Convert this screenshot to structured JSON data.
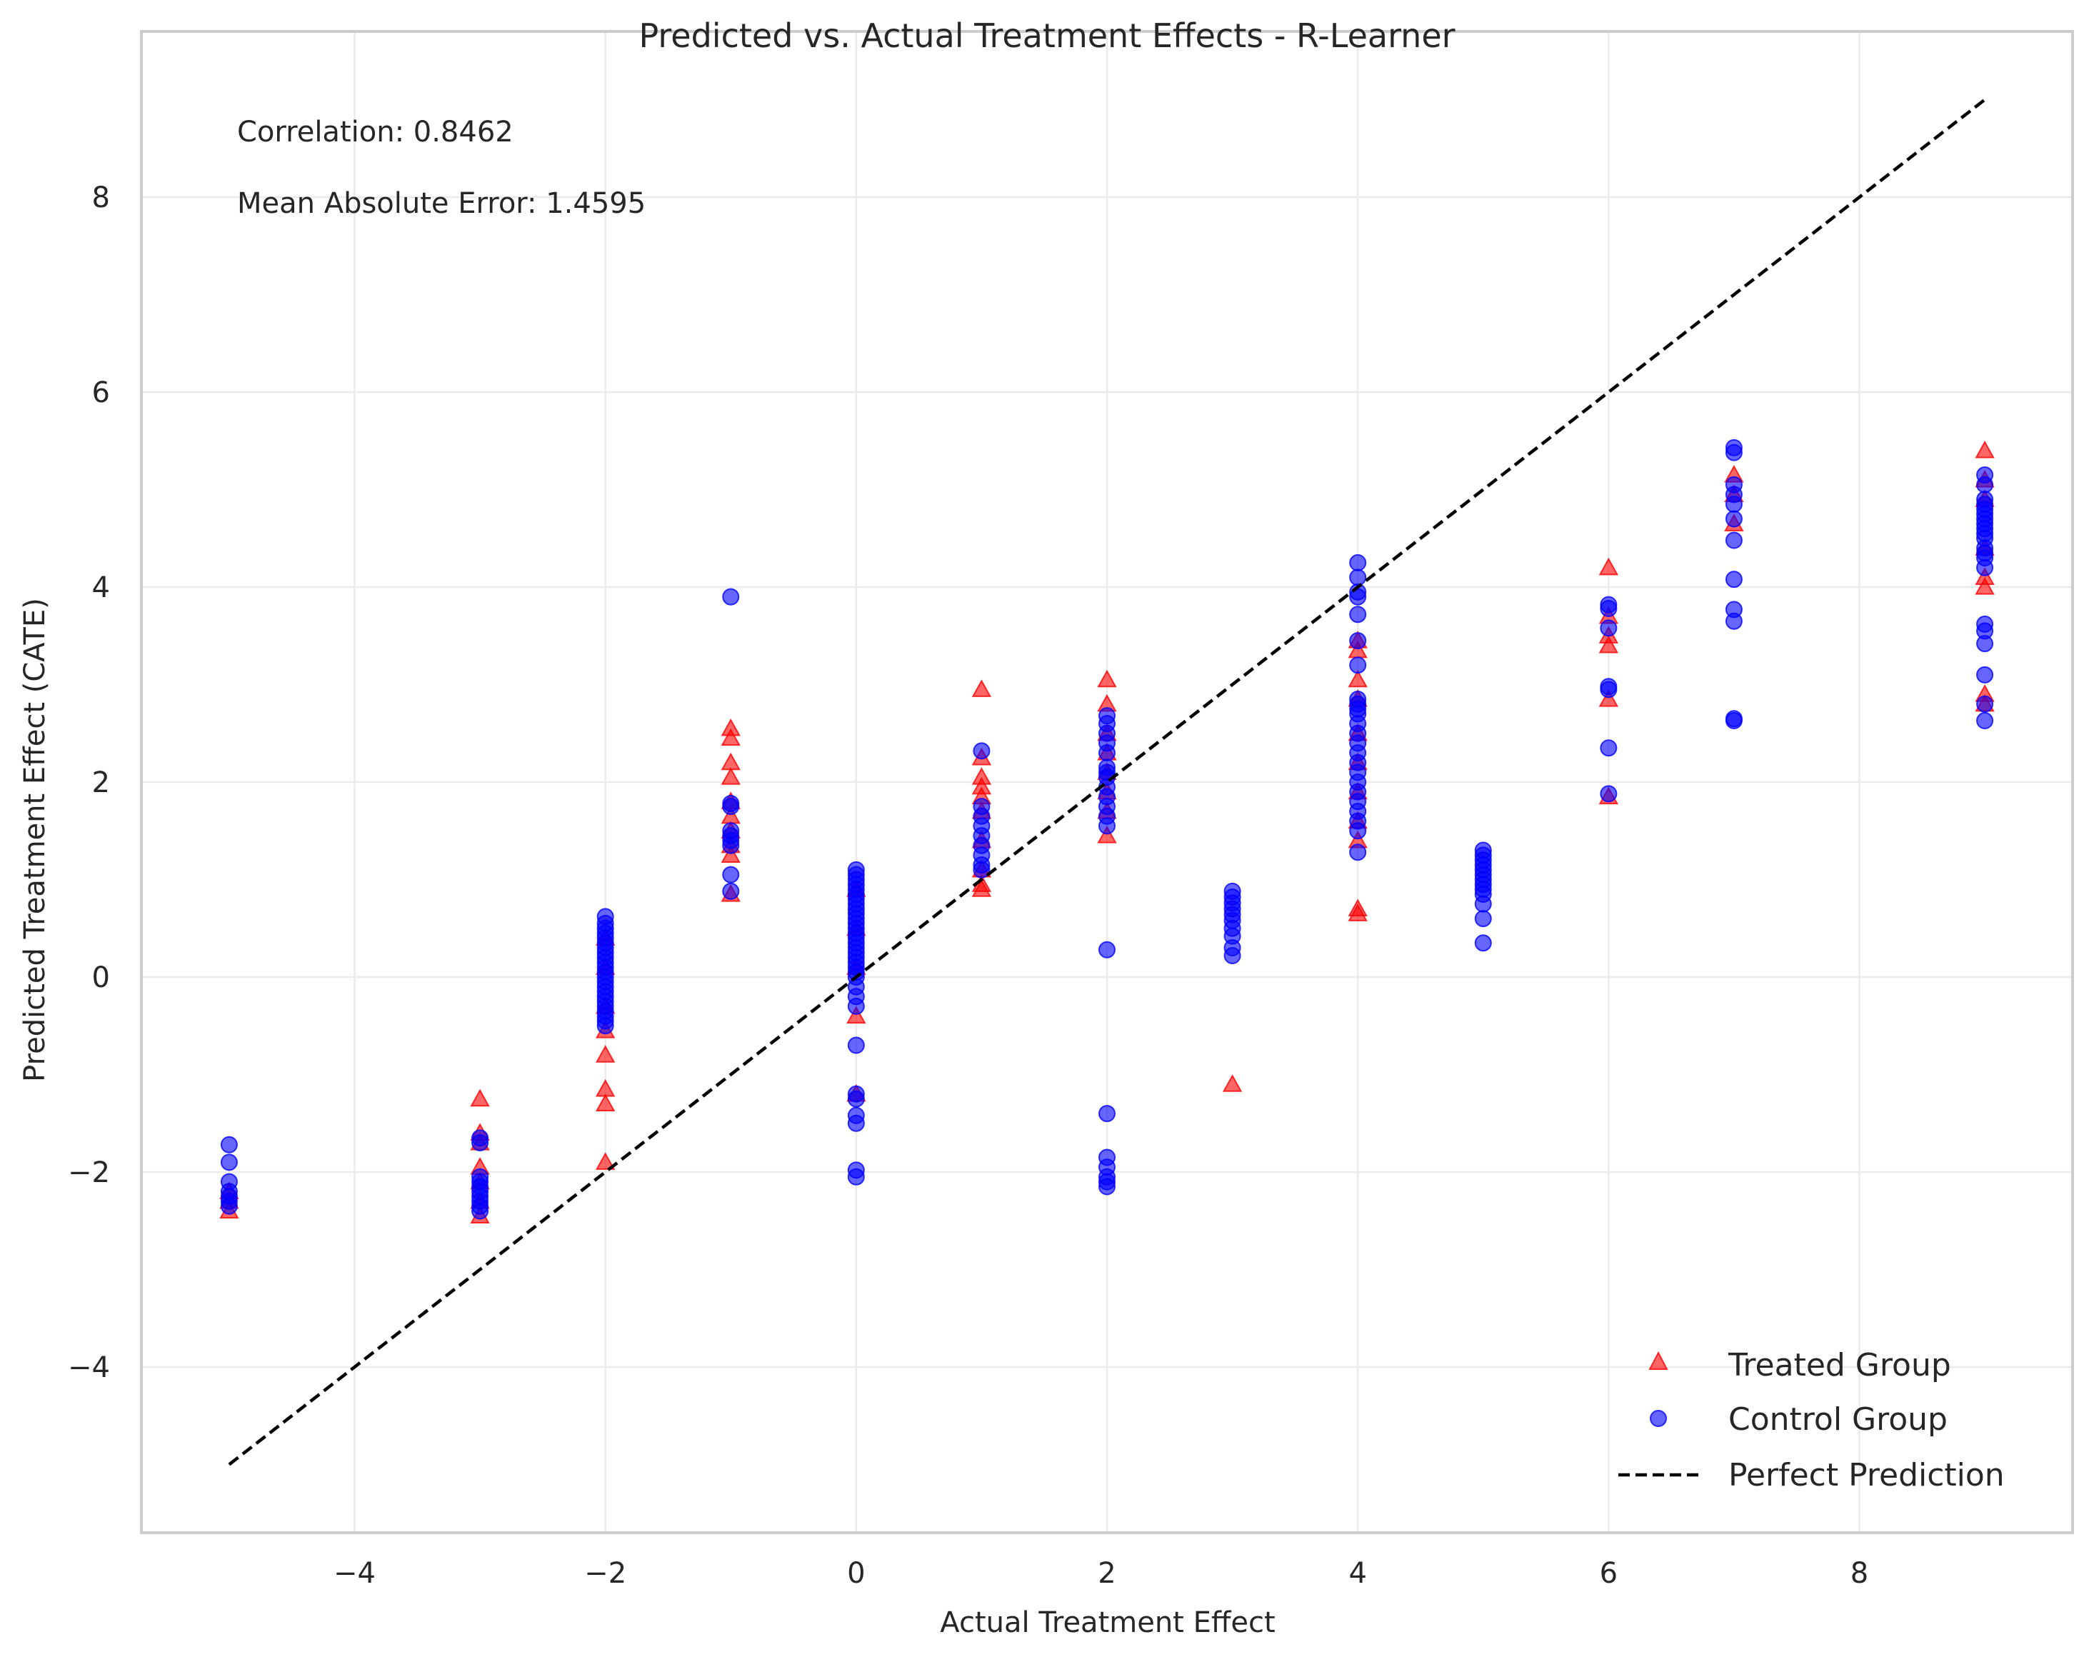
{
  "chart_data": {
    "type": "scatter",
    "title": "Predicted vs. Actual Treatment Effects - R-Learner",
    "xlabel": "Actual Treatment Effect",
    "ylabel": "Predicted Treatment Effect (CATE)",
    "xlim": [
      -5.7,
      9.7
    ],
    "ylim": [
      -5.7,
      9.7
    ],
    "xticks": [
      -4,
      -2,
      0,
      2,
      4,
      6,
      8
    ],
    "yticks": [
      -4,
      -2,
      0,
      2,
      4,
      6,
      8
    ],
    "grid": true,
    "legend_position": "lower-right",
    "annotations": [
      {
        "text": "Correlation: 0.8462"
      },
      {
        "text": "Mean Absolute Error: 1.4595"
      }
    ],
    "series": [
      {
        "name": "Treated Group",
        "marker": "triangle",
        "color": "#ff0000",
        "points": [
          [
            -5,
            -2.4
          ],
          [
            -5,
            -2.3
          ],
          [
            -5,
            -2.2
          ],
          [
            -3,
            -1.25
          ],
          [
            -3,
            -1.6
          ],
          [
            -3,
            -1.7
          ],
          [
            -3,
            -1.95
          ],
          [
            -3,
            -2.1
          ],
          [
            -3,
            -2.3
          ],
          [
            -3,
            -2.45
          ],
          [
            -2,
            -1.15
          ],
          [
            -2,
            -1.3
          ],
          [
            -2,
            -0.8
          ],
          [
            -2,
            -0.55
          ],
          [
            -2,
            -1.9
          ],
          [
            -2,
            -0.3
          ],
          [
            -2,
            0.1
          ],
          [
            -2,
            0.4
          ],
          [
            -1,
            2.55
          ],
          [
            -1,
            2.45
          ],
          [
            -1,
            2.2
          ],
          [
            -1,
            2.05
          ],
          [
            -1,
            1.8
          ],
          [
            -1,
            1.65
          ],
          [
            -1,
            1.5
          ],
          [
            -1,
            1.35
          ],
          [
            -1,
            1.25
          ],
          [
            -1,
            0.85
          ],
          [
            0,
            -0.4
          ],
          [
            0,
            -1.2
          ],
          [
            0,
            0.1
          ],
          [
            0,
            0.5
          ],
          [
            0,
            0.9
          ],
          [
            1,
            2.95
          ],
          [
            1,
            2.25
          ],
          [
            1,
            2.05
          ],
          [
            1,
            1.95
          ],
          [
            1,
            1.85
          ],
          [
            1,
            1.7
          ],
          [
            1,
            1.4
          ],
          [
            1,
            1.1
          ],
          [
            1,
            0.95
          ],
          [
            1,
            0.9
          ],
          [
            2,
            3.05
          ],
          [
            2,
            2.8
          ],
          [
            2,
            2.5
          ],
          [
            2,
            2.3
          ],
          [
            2,
            2.1
          ],
          [
            2,
            1.9
          ],
          [
            2,
            1.7
          ],
          [
            2,
            1.45
          ],
          [
            3,
            -1.1
          ],
          [
            4,
            3.45
          ],
          [
            4,
            3.35
          ],
          [
            4,
            3.05
          ],
          [
            4,
            2.85
          ],
          [
            4,
            2.5
          ],
          [
            4,
            2.2
          ],
          [
            4,
            1.9
          ],
          [
            4,
            1.6
          ],
          [
            4,
            1.4
          ],
          [
            4,
            0.7
          ],
          [
            4,
            0.65
          ],
          [
            6,
            4.2
          ],
          [
            6,
            3.7
          ],
          [
            6,
            3.5
          ],
          [
            6,
            3.4
          ],
          [
            6,
            2.85
          ],
          [
            6,
            1.85
          ],
          [
            7,
            5.15
          ],
          [
            7,
            4.95
          ],
          [
            7,
            4.65
          ],
          [
            9,
            5.4
          ],
          [
            9,
            5.1
          ],
          [
            9,
            4.9
          ],
          [
            9,
            4.4
          ],
          [
            9,
            4.1
          ],
          [
            9,
            4.0
          ],
          [
            9,
            2.9
          ],
          [
            9,
            2.8
          ]
        ]
      },
      {
        "name": "Control Group",
        "marker": "circle",
        "color": "#0000ff",
        "points": [
          [
            -5,
            -1.72
          ],
          [
            -5,
            -1.9
          ],
          [
            -5,
            -2.1
          ],
          [
            -5,
            -2.2
          ],
          [
            -5,
            -2.25
          ],
          [
            -5,
            -2.3
          ],
          [
            -5,
            -2.35
          ],
          [
            -3,
            -1.65
          ],
          [
            -3,
            -1.7
          ],
          [
            -3,
            -2.05
          ],
          [
            -3,
            -2.1
          ],
          [
            -3,
            -2.15
          ],
          [
            -3,
            -2.2
          ],
          [
            -3,
            -2.25
          ],
          [
            -3,
            -2.3
          ],
          [
            -3,
            -2.35
          ],
          [
            -3,
            -2.4
          ],
          [
            -2,
            0.62
          ],
          [
            -2,
            0.55
          ],
          [
            -2,
            0.5
          ],
          [
            -2,
            0.45
          ],
          [
            -2,
            0.4
          ],
          [
            -2,
            0.35
          ],
          [
            -2,
            0.3
          ],
          [
            -2,
            0.25
          ],
          [
            -2,
            0.2
          ],
          [
            -2,
            0.15
          ],
          [
            -2,
            0.1
          ],
          [
            -2,
            0.05
          ],
          [
            -2,
            0.0
          ],
          [
            -2,
            -0.05
          ],
          [
            -2,
            -0.1
          ],
          [
            -2,
            -0.15
          ],
          [
            -2,
            -0.2
          ],
          [
            -2,
            -0.25
          ],
          [
            -2,
            -0.3
          ],
          [
            -2,
            -0.35
          ],
          [
            -2,
            -0.4
          ],
          [
            -2,
            -0.45
          ],
          [
            -2,
            -0.5
          ],
          [
            -1,
            3.9
          ],
          [
            -1,
            1.78
          ],
          [
            -1,
            1.75
          ],
          [
            -1,
            1.5
          ],
          [
            -1,
            1.45
          ],
          [
            -1,
            1.4
          ],
          [
            -1,
            1.35
          ],
          [
            -1,
            1.05
          ],
          [
            -1,
            0.88
          ],
          [
            0,
            1.1
          ],
          [
            0,
            1.05
          ],
          [
            0,
            1.0
          ],
          [
            0,
            0.95
          ],
          [
            0,
            0.9
          ],
          [
            0,
            0.85
          ],
          [
            0,
            0.8
          ],
          [
            0,
            0.75
          ],
          [
            0,
            0.7
          ],
          [
            0,
            0.65
          ],
          [
            0,
            0.6
          ],
          [
            0,
            0.55
          ],
          [
            0,
            0.5
          ],
          [
            0,
            0.45
          ],
          [
            0,
            0.4
          ],
          [
            0,
            0.35
          ],
          [
            0,
            0.3
          ],
          [
            0,
            0.25
          ],
          [
            0,
            0.2
          ],
          [
            0,
            0.15
          ],
          [
            0,
            0.1
          ],
          [
            0,
            0.05
          ],
          [
            0,
            0.0
          ],
          [
            0,
            -0.1
          ],
          [
            0,
            -0.2
          ],
          [
            0,
            -0.3
          ],
          [
            0,
            -0.7
          ],
          [
            0,
            -1.2
          ],
          [
            0,
            -1.25
          ],
          [
            0,
            -1.42
          ],
          [
            0,
            -1.5
          ],
          [
            0,
            -1.98
          ],
          [
            0,
            -2.05
          ],
          [
            1,
            2.32
          ],
          [
            1,
            1.75
          ],
          [
            1,
            1.65
          ],
          [
            1,
            1.55
          ],
          [
            1,
            1.45
          ],
          [
            1,
            1.35
          ],
          [
            1,
            1.25
          ],
          [
            1,
            1.15
          ],
          [
            1,
            1.1
          ],
          [
            2,
            2.68
          ],
          [
            2,
            2.6
          ],
          [
            2,
            2.5
          ],
          [
            2,
            2.4
          ],
          [
            2,
            2.3
          ],
          [
            2,
            2.15
          ],
          [
            2,
            2.1
          ],
          [
            2,
            2.05
          ],
          [
            2,
            1.95
          ],
          [
            2,
            1.85
          ],
          [
            2,
            1.75
          ],
          [
            2,
            1.65
          ],
          [
            2,
            1.55
          ],
          [
            2,
            0.28
          ],
          [
            2,
            -1.4
          ],
          [
            2,
            -1.85
          ],
          [
            2,
            -1.95
          ],
          [
            2,
            -2.05
          ],
          [
            2,
            -2.1
          ],
          [
            2,
            -2.15
          ],
          [
            3,
            0.88
          ],
          [
            3,
            0.82
          ],
          [
            3,
            0.76
          ],
          [
            3,
            0.7
          ],
          [
            3,
            0.64
          ],
          [
            3,
            0.58
          ],
          [
            3,
            0.5
          ],
          [
            3,
            0.42
          ],
          [
            3,
            0.3
          ],
          [
            3,
            0.22
          ],
          [
            4,
            4.25
          ],
          [
            4,
            4.1
          ],
          [
            4,
            3.95
          ],
          [
            4,
            3.9
          ],
          [
            4,
            3.72
          ],
          [
            4,
            3.45
          ],
          [
            4,
            3.2
          ],
          [
            4,
            2.85
          ],
          [
            4,
            2.8
          ],
          [
            4,
            2.75
          ],
          [
            4,
            2.7
          ],
          [
            4,
            2.6
          ],
          [
            4,
            2.5
          ],
          [
            4,
            2.4
          ],
          [
            4,
            2.3
          ],
          [
            4,
            2.2
          ],
          [
            4,
            2.1
          ],
          [
            4,
            2.0
          ],
          [
            4,
            1.9
          ],
          [
            4,
            1.8
          ],
          [
            4,
            1.7
          ],
          [
            4,
            1.6
          ],
          [
            4,
            1.5
          ],
          [
            4,
            1.28
          ],
          [
            5,
            1.3
          ],
          [
            5,
            1.25
          ],
          [
            5,
            1.2
          ],
          [
            5,
            1.15
          ],
          [
            5,
            1.1
          ],
          [
            5,
            1.05
          ],
          [
            5,
            1.0
          ],
          [
            5,
            0.95
          ],
          [
            5,
            0.9
          ],
          [
            5,
            0.85
          ],
          [
            5,
            0.75
          ],
          [
            5,
            0.6
          ],
          [
            5,
            0.35
          ],
          [
            6,
            3.82
          ],
          [
            6,
            3.78
          ],
          [
            6,
            3.58
          ],
          [
            6,
            2.98
          ],
          [
            6,
            2.95
          ],
          [
            6,
            2.35
          ],
          [
            6,
            1.88
          ],
          [
            7,
            5.43
          ],
          [
            7,
            5.38
          ],
          [
            7,
            5.05
          ],
          [
            7,
            4.95
          ],
          [
            7,
            4.85
          ],
          [
            7,
            4.7
          ],
          [
            7,
            4.48
          ],
          [
            7,
            4.08
          ],
          [
            7,
            3.77
          ],
          [
            7,
            3.65
          ],
          [
            7,
            2.65
          ],
          [
            7,
            2.63
          ],
          [
            9,
            5.15
          ],
          [
            9,
            5.05
          ],
          [
            9,
            4.9
          ],
          [
            9,
            4.85
          ],
          [
            9,
            4.8
          ],
          [
            9,
            4.75
          ],
          [
            9,
            4.7
          ],
          [
            9,
            4.65
          ],
          [
            9,
            4.6
          ],
          [
            9,
            4.55
          ],
          [
            9,
            4.5
          ],
          [
            9,
            4.4
          ],
          [
            9,
            4.35
          ],
          [
            9,
            4.3
          ],
          [
            9,
            4.2
          ],
          [
            9,
            3.62
          ],
          [
            9,
            3.55
          ],
          [
            9,
            3.42
          ],
          [
            9,
            3.1
          ],
          [
            9,
            2.8
          ],
          [
            9,
            2.63
          ]
        ]
      },
      {
        "name": "Perfect Prediction",
        "type": "line",
        "style": "dashed",
        "color": "#000000",
        "points": [
          [
            -5,
            -5
          ],
          [
            9,
            9
          ]
        ]
      }
    ]
  }
}
